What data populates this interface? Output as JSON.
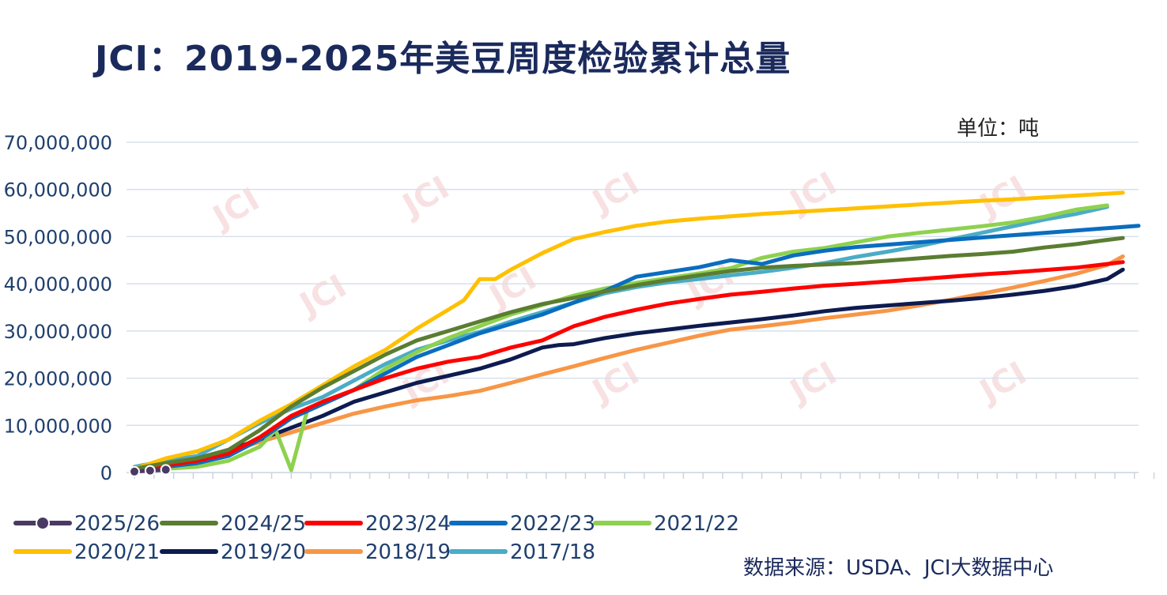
{
  "title": "JCI：2019-2025年美豆周度检验累计总量",
  "unit_label": "单位：吨",
  "source_label": "数据来源：USDA、JCI大数据中心",
  "watermark": "JCI",
  "chart_data": {
    "type": "line",
    "title": "JCI：2019-2025年美豆周度检验累计总量",
    "xlabel": "",
    "ylabel": "",
    "ylim": [
      0,
      70000000
    ],
    "yticks": [
      0,
      10000000,
      20000000,
      30000000,
      40000000,
      50000000,
      60000000,
      70000000
    ],
    "ytick_labels": [
      "0",
      "10,000,000",
      "20,000,000",
      "30,000,000",
      "40,000,000",
      "50,000,000",
      "60,000,000",
      "70,000,000"
    ],
    "x_count": 53,
    "grid": true,
    "legend": "bottom",
    "series": [
      {
        "name": "2025/26",
        "color": "#4a3a63",
        "marker": true,
        "values": [
          [
            0,
            200000
          ],
          [
            1,
            400000
          ],
          [
            2,
            600000
          ]
        ]
      },
      {
        "name": "2024/25",
        "color": "#5a7d32",
        "values": [
          [
            0,
            800000
          ],
          [
            2,
            2000000
          ],
          [
            4,
            3000000
          ],
          [
            6,
            4800000
          ],
          [
            8,
            9000000
          ],
          [
            10,
            14000000
          ],
          [
            12,
            18000000
          ],
          [
            14,
            21500000
          ],
          [
            16,
            25000000
          ],
          [
            18,
            28000000
          ],
          [
            20,
            30000000
          ],
          [
            22,
            32000000
          ],
          [
            24,
            34000000
          ],
          [
            26,
            35700000
          ],
          [
            28,
            37000000
          ],
          [
            30,
            38400000
          ],
          [
            32,
            39700000
          ],
          [
            34,
            40800000
          ],
          [
            36,
            41800000
          ],
          [
            38,
            42700000
          ],
          [
            40,
            43400000
          ],
          [
            42,
            43800000
          ],
          [
            44,
            44100000
          ],
          [
            46,
            44400000
          ],
          [
            48,
            44900000
          ],
          [
            50,
            45400000
          ],
          [
            52,
            45900000
          ],
          [
            54,
            46300000
          ],
          [
            56,
            46800000
          ],
          [
            58,
            47700000
          ],
          [
            60,
            48400000
          ],
          [
            62,
            49300000
          ],
          [
            63,
            49700000
          ]
        ]
      },
      {
        "name": "2023/24",
        "color": "#ff0000",
        "values": [
          [
            0,
            600000
          ],
          [
            2,
            1500000
          ],
          [
            4,
            2500000
          ],
          [
            6,
            4000000
          ],
          [
            8,
            7500000
          ],
          [
            10,
            12000000
          ],
          [
            12,
            15000000
          ],
          [
            14,
            17500000
          ],
          [
            16,
            20000000
          ],
          [
            18,
            22000000
          ],
          [
            20,
            23500000
          ],
          [
            22,
            24500000
          ],
          [
            24,
            26500000
          ],
          [
            26,
            28000000
          ],
          [
            28,
            31000000
          ],
          [
            30,
            33000000
          ],
          [
            32,
            34500000
          ],
          [
            34,
            35800000
          ],
          [
            36,
            36800000
          ],
          [
            38,
            37700000
          ],
          [
            40,
            38300000
          ],
          [
            42,
            39000000
          ],
          [
            44,
            39600000
          ],
          [
            46,
            40000000
          ],
          [
            48,
            40500000
          ],
          [
            50,
            41000000
          ],
          [
            52,
            41500000
          ],
          [
            54,
            42000000
          ],
          [
            56,
            42400000
          ],
          [
            58,
            42900000
          ],
          [
            60,
            43400000
          ],
          [
            62,
            44200000
          ],
          [
            63,
            44600000
          ]
        ]
      },
      {
        "name": "2022/23",
        "color": "#0a6dbf",
        "values": [
          [
            0,
            500000
          ],
          [
            2,
            1200000
          ],
          [
            4,
            2000000
          ],
          [
            6,
            3500000
          ],
          [
            8,
            7000000
          ],
          [
            10,
            11500000
          ],
          [
            12,
            14500000
          ],
          [
            14,
            17500000
          ],
          [
            16,
            21000000
          ],
          [
            18,
            24500000
          ],
          [
            20,
            27000000
          ],
          [
            22,
            29500000
          ],
          [
            24,
            31500000
          ],
          [
            26,
            33500000
          ],
          [
            28,
            36000000
          ],
          [
            30,
            38500000
          ],
          [
            32,
            41500000
          ],
          [
            34,
            42500000
          ],
          [
            36,
            43500000
          ],
          [
            38,
            45000000
          ],
          [
            40,
            44200000
          ],
          [
            42,
            46000000
          ],
          [
            44,
            47000000
          ],
          [
            46,
            47800000
          ],
          [
            48,
            48300000
          ],
          [
            50,
            48800000
          ],
          [
            52,
            49300000
          ],
          [
            54,
            49800000
          ],
          [
            56,
            50300000
          ],
          [
            58,
            50800000
          ],
          [
            60,
            51300000
          ],
          [
            62,
            51800000
          ],
          [
            64,
            52300000
          ]
        ]
      },
      {
        "name": "2021/22",
        "color": "#8ed14f",
        "values": [
          [
            0,
            500000
          ],
          [
            2,
            800000
          ],
          [
            4,
            1200000
          ],
          [
            6,
            2500000
          ],
          [
            8,
            5500000
          ],
          [
            9,
            9000000
          ],
          [
            10,
            500000
          ],
          [
            11,
            13000000
          ],
          [
            12,
            15000000
          ],
          [
            14,
            17500000
          ],
          [
            16,
            22000000
          ],
          [
            18,
            25500000
          ],
          [
            20,
            28500000
          ],
          [
            22,
            31000000
          ],
          [
            24,
            33500000
          ],
          [
            26,
            35500000
          ],
          [
            28,
            37500000
          ],
          [
            30,
            39000000
          ],
          [
            32,
            40200000
          ],
          [
            34,
            41200000
          ],
          [
            36,
            42200000
          ],
          [
            38,
            43300000
          ],
          [
            40,
            45500000
          ],
          [
            42,
            46800000
          ],
          [
            44,
            47600000
          ],
          [
            46,
            48800000
          ],
          [
            48,
            50000000
          ],
          [
            50,
            50800000
          ],
          [
            52,
            51500000
          ],
          [
            54,
            52200000
          ],
          [
            56,
            53000000
          ],
          [
            58,
            54200000
          ],
          [
            60,
            55700000
          ],
          [
            62,
            56600000
          ]
        ]
      },
      {
        "name": "2020/21",
        "color": "#ffc000",
        "values": [
          [
            0,
            800000
          ],
          [
            2,
            3000000
          ],
          [
            4,
            4500000
          ],
          [
            6,
            7000000
          ],
          [
            8,
            11000000
          ],
          [
            10,
            14500000
          ],
          [
            12,
            18500000
          ],
          [
            14,
            22500000
          ],
          [
            16,
            26000000
          ],
          [
            18,
            30500000
          ],
          [
            20,
            34500000
          ],
          [
            21,
            36500000
          ],
          [
            22,
            41000000
          ],
          [
            23,
            41000000
          ],
          [
            24,
            43000000
          ],
          [
            26,
            46500000
          ],
          [
            28,
            49500000
          ],
          [
            30,
            51000000
          ],
          [
            32,
            52300000
          ],
          [
            34,
            53200000
          ],
          [
            36,
            53800000
          ],
          [
            38,
            54300000
          ],
          [
            40,
            54800000
          ],
          [
            42,
            55200000
          ],
          [
            44,
            55600000
          ],
          [
            46,
            56000000
          ],
          [
            48,
            56400000
          ],
          [
            50,
            56800000
          ],
          [
            52,
            57200000
          ],
          [
            54,
            57600000
          ],
          [
            56,
            57900000
          ],
          [
            58,
            58300000
          ],
          [
            60,
            58700000
          ],
          [
            62,
            59100000
          ],
          [
            63,
            59300000
          ]
        ]
      },
      {
        "name": "2019/20",
        "color": "#0d1b4f",
        "values": [
          [
            0,
            600000
          ],
          [
            2,
            1800000
          ],
          [
            4,
            3000000
          ],
          [
            6,
            4800000
          ],
          [
            8,
            7000000
          ],
          [
            10,
            9500000
          ],
          [
            12,
            12000000
          ],
          [
            14,
            15000000
          ],
          [
            16,
            17000000
          ],
          [
            18,
            19000000
          ],
          [
            20,
            20500000
          ],
          [
            22,
            22000000
          ],
          [
            24,
            24000000
          ],
          [
            26,
            26500000
          ],
          [
            27,
            27000000
          ],
          [
            28,
            27200000
          ],
          [
            30,
            28500000
          ],
          [
            32,
            29500000
          ],
          [
            34,
            30300000
          ],
          [
            36,
            31100000
          ],
          [
            38,
            31800000
          ],
          [
            40,
            32500000
          ],
          [
            42,
            33300000
          ],
          [
            44,
            34200000
          ],
          [
            46,
            34900000
          ],
          [
            48,
            35400000
          ],
          [
            50,
            35900000
          ],
          [
            52,
            36400000
          ],
          [
            54,
            37000000
          ],
          [
            56,
            37700000
          ],
          [
            58,
            38500000
          ],
          [
            60,
            39500000
          ],
          [
            62,
            41000000
          ],
          [
            63,
            43000000
          ]
        ]
      },
      {
        "name": "2018/19",
        "color": "#f79646",
        "values": [
          [
            0,
            800000
          ],
          [
            2,
            2000000
          ],
          [
            4,
            3000000
          ],
          [
            6,
            4500000
          ],
          [
            8,
            6500000
          ],
          [
            10,
            8500000
          ],
          [
            12,
            10500000
          ],
          [
            14,
            12500000
          ],
          [
            16,
            14000000
          ],
          [
            18,
            15300000
          ],
          [
            20,
            16200000
          ],
          [
            22,
            17300000
          ],
          [
            24,
            19000000
          ],
          [
            26,
            20800000
          ],
          [
            28,
            22500000
          ],
          [
            30,
            24300000
          ],
          [
            32,
            26000000
          ],
          [
            34,
            27500000
          ],
          [
            36,
            29000000
          ],
          [
            38,
            30300000
          ],
          [
            40,
            31000000
          ],
          [
            42,
            31800000
          ],
          [
            44,
            32700000
          ],
          [
            46,
            33500000
          ],
          [
            48,
            34300000
          ],
          [
            50,
            35400000
          ],
          [
            52,
            36600000
          ],
          [
            54,
            37900000
          ],
          [
            56,
            39200000
          ],
          [
            58,
            40600000
          ],
          [
            60,
            42100000
          ],
          [
            62,
            44000000
          ],
          [
            63,
            45800000
          ]
        ]
      },
      {
        "name": "2017/18",
        "color": "#4bacc6",
        "values": [
          [
            0,
            1200000
          ],
          [
            2,
            2500000
          ],
          [
            4,
            3500000
          ],
          [
            6,
            7000000
          ],
          [
            8,
            10500000
          ],
          [
            10,
            13500000
          ],
          [
            12,
            16000000
          ],
          [
            14,
            19500000
          ],
          [
            16,
            23000000
          ],
          [
            18,
            26000000
          ],
          [
            20,
            28000000
          ],
          [
            22,
            29800000
          ],
          [
            24,
            32000000
          ],
          [
            26,
            34000000
          ],
          [
            28,
            36000000
          ],
          [
            30,
            38000000
          ],
          [
            32,
            39300000
          ],
          [
            34,
            40300000
          ],
          [
            36,
            41000000
          ],
          [
            38,
            41800000
          ],
          [
            40,
            42500000
          ],
          [
            42,
            43400000
          ],
          [
            44,
            44400000
          ],
          [
            46,
            45700000
          ],
          [
            48,
            46800000
          ],
          [
            50,
            48000000
          ],
          [
            52,
            49400000
          ],
          [
            54,
            50800000
          ],
          [
            56,
            52200000
          ],
          [
            58,
            53600000
          ],
          [
            60,
            54800000
          ],
          [
            62,
            56300000
          ]
        ]
      }
    ]
  }
}
